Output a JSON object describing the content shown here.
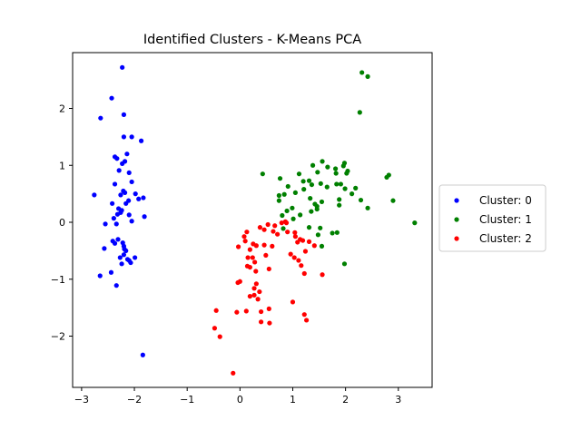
{
  "chart_data": {
    "type": "scatter",
    "title": "Identified Clusters - K-Means PCA",
    "xlabel": "",
    "ylabel": "",
    "xlim": [
      -3.17,
      3.64
    ],
    "ylim": [
      -2.9,
      2.98
    ],
    "xticks": [
      -3,
      -2,
      -1,
      0,
      1,
      2,
      3
    ],
    "yticks": [
      -2,
      -1,
      0,
      1,
      2
    ],
    "grid": false,
    "legend_position": "right",
    "series": [
      {
        "name": "Cluster: 0",
        "color": "#0000ff",
        "points": [
          [
            -2.23,
            2.72
          ],
          [
            -2.43,
            2.18
          ],
          [
            -2.64,
            1.83
          ],
          [
            -2.2,
            1.89
          ],
          [
            -2.2,
            1.5
          ],
          [
            -2.05,
            1.5
          ],
          [
            -1.87,
            1.43
          ],
          [
            -2.14,
            1.2
          ],
          [
            -2.37,
            1.15
          ],
          [
            -2.33,
            1.12
          ],
          [
            -2.23,
            1.03
          ],
          [
            -2.18,
            1.07
          ],
          [
            -2.29,
            0.91
          ],
          [
            -2.1,
            0.87
          ],
          [
            -2.05,
            0.71
          ],
          [
            -2.37,
            0.67
          ],
          [
            -2.21,
            0.55
          ],
          [
            -2.26,
            0.48
          ],
          [
            -2.18,
            0.52
          ],
          [
            -1.98,
            0.5
          ],
          [
            -1.83,
            0.43
          ],
          [
            -1.92,
            0.41
          ],
          [
            -2.76,
            0.48
          ],
          [
            -2.11,
            0.38
          ],
          [
            -2.16,
            0.33
          ],
          [
            -2.42,
            0.33
          ],
          [
            -2.3,
            0.24
          ],
          [
            -2.24,
            0.21
          ],
          [
            -2.26,
            0.17
          ],
          [
            -2.32,
            0.14
          ],
          [
            -2.1,
            0.13
          ],
          [
            -1.81,
            0.1
          ],
          [
            -2.39,
            0.07
          ],
          [
            -2.05,
            0.02
          ],
          [
            -2.34,
            -0.03
          ],
          [
            -2.55,
            -0.03
          ],
          [
            -2.31,
            -0.3
          ],
          [
            -2.41,
            -0.33
          ],
          [
            -2.37,
            -0.37
          ],
          [
            -2.22,
            -0.36
          ],
          [
            -2.2,
            -0.42
          ],
          [
            -2.19,
            -0.47
          ],
          [
            -2.16,
            -0.5
          ],
          [
            -2.57,
            -0.46
          ],
          [
            -2.2,
            -0.57
          ],
          [
            -2.27,
            -0.62
          ],
          [
            -2.13,
            -0.65
          ],
          [
            -1.99,
            -0.62
          ],
          [
            -2.1,
            -0.67
          ],
          [
            -2.07,
            -0.71
          ],
          [
            -2.24,
            -0.73
          ],
          [
            -2.44,
            -0.88
          ],
          [
            -2.65,
            -0.94
          ],
          [
            -2.34,
            -1.11
          ],
          [
            -1.84,
            -2.33
          ]
        ]
      },
      {
        "name": "Cluster: 1",
        "color": "#008000",
        "points": [
          [
            2.31,
            2.63
          ],
          [
            2.42,
            2.56
          ],
          [
            2.27,
            1.93
          ],
          [
            1.56,
            1.07
          ],
          [
            1.98,
            1.04
          ],
          [
            1.96,
            0.99
          ],
          [
            1.66,
            0.97
          ],
          [
            1.38,
            1.0
          ],
          [
            1.81,
            0.94
          ],
          [
            2.04,
            0.9
          ],
          [
            1.47,
            0.88
          ],
          [
            2.02,
            0.86
          ],
          [
            1.82,
            0.86
          ],
          [
            1.12,
            0.85
          ],
          [
            0.43,
            0.85
          ],
          [
            2.78,
            0.79
          ],
          [
            2.82,
            0.83
          ],
          [
            1.31,
            0.73
          ],
          [
            0.76,
            0.77
          ],
          [
            1.2,
            0.72
          ],
          [
            1.53,
            0.68
          ],
          [
            1.36,
            0.66
          ],
          [
            1.83,
            0.67
          ],
          [
            1.91,
            0.67
          ],
          [
            0.91,
            0.63
          ],
          [
            1.65,
            0.62
          ],
          [
            1.99,
            0.59
          ],
          [
            2.19,
            0.6
          ],
          [
            1.21,
            0.58
          ],
          [
            1.05,
            0.52
          ],
          [
            0.84,
            0.49
          ],
          [
            0.74,
            0.47
          ],
          [
            2.12,
            0.5
          ],
          [
            1.33,
            0.42
          ],
          [
            1.88,
            0.4
          ],
          [
            0.74,
            0.38
          ],
          [
            1.55,
            0.36
          ],
          [
            1.42,
            0.32
          ],
          [
            2.29,
            0.39
          ],
          [
            2.9,
            0.38
          ],
          [
            1.88,
            0.3
          ],
          [
            1.46,
            0.28
          ],
          [
            0.99,
            0.25
          ],
          [
            2.42,
            0.25
          ],
          [
            1.46,
            0.23
          ],
          [
            0.89,
            0.2
          ],
          [
            1.35,
            0.19
          ],
          [
            1.14,
            0.13
          ],
          [
            0.8,
            0.12
          ],
          [
            1.01,
            0.06
          ],
          [
            3.31,
            -0.01
          ],
          [
            1.31,
            -0.09
          ],
          [
            1.52,
            -0.1
          ],
          [
            0.82,
            -0.11
          ],
          [
            1.48,
            -0.22
          ],
          [
            1.84,
            -0.18
          ],
          [
            1.75,
            -0.19
          ],
          [
            1.55,
            -0.42
          ],
          [
            1.98,
            -0.73
          ]
        ]
      },
      {
        "name": "Cluster: 2",
        "color": "#ff0000",
        "points": [
          [
            0.53,
            -0.04
          ],
          [
            0.66,
            -0.06
          ],
          [
            0.38,
            -0.09
          ],
          [
            0.79,
            -0.01
          ],
          [
            0.88,
            -0.01
          ],
          [
            0.86,
            0.01
          ],
          [
            0.46,
            -0.13
          ],
          [
            0.63,
            -0.16
          ],
          [
            0.71,
            -0.21
          ],
          [
            0.9,
            -0.17
          ],
          [
            0.13,
            -0.17
          ],
          [
            0.08,
            -0.25
          ],
          [
            0.1,
            -0.33
          ],
          [
            1.04,
            -0.18
          ],
          [
            1.05,
            -0.25
          ],
          [
            1.14,
            -0.3
          ],
          [
            1.09,
            -0.35
          ],
          [
            1.19,
            -0.32
          ],
          [
            1.31,
            -0.34
          ],
          [
            1.41,
            -0.41
          ],
          [
            1.24,
            -0.51
          ],
          [
            0.25,
            -0.38
          ],
          [
            0.46,
            -0.4
          ],
          [
            0.61,
            -0.42
          ],
          [
            0.31,
            -0.41
          ],
          [
            -0.03,
            -0.43
          ],
          [
            0.19,
            -0.48
          ],
          [
            0.96,
            -0.56
          ],
          [
            1.03,
            -0.62
          ],
          [
            1.11,
            -0.67
          ],
          [
            1.16,
            -0.76
          ],
          [
            1.22,
            -0.9
          ],
          [
            0.24,
            -0.62
          ],
          [
            0.49,
            -0.58
          ],
          [
            0.15,
            -0.62
          ],
          [
            0.28,
            -0.7
          ],
          [
            0.14,
            -0.77
          ],
          [
            0.19,
            -0.79
          ],
          [
            0.3,
            -0.86
          ],
          [
            0.55,
            -0.82
          ],
          [
            1.56,
            -0.92
          ],
          [
            0.0,
            -1.04
          ],
          [
            -0.04,
            -1.06
          ],
          [
            0.31,
            -1.08
          ],
          [
            0.37,
            -1.22
          ],
          [
            0.27,
            -1.16
          ],
          [
            0.27,
            -1.28
          ],
          [
            0.19,
            -1.3
          ],
          [
            1.0,
            -1.4
          ],
          [
            0.34,
            -1.35
          ],
          [
            0.12,
            -1.56
          ],
          [
            -0.06,
            -1.58
          ],
          [
            0.4,
            -1.57
          ],
          [
            0.55,
            -1.52
          ],
          [
            1.22,
            -1.62
          ],
          [
            -0.45,
            -1.55
          ],
          [
            0.4,
            -1.75
          ],
          [
            0.56,
            -1.77
          ],
          [
            1.26,
            -1.72
          ],
          [
            -0.48,
            -1.86
          ],
          [
            -0.38,
            -2.01
          ],
          [
            -0.13,
            -2.65
          ]
        ]
      }
    ]
  }
}
